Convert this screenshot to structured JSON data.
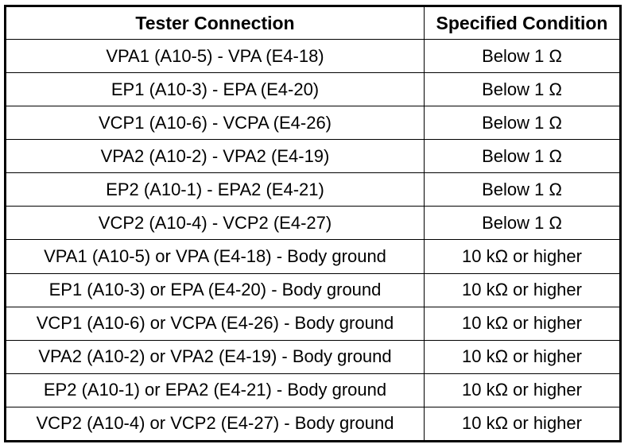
{
  "table": {
    "headers": [
      "Tester Connection",
      "Specified Condition"
    ],
    "rows": [
      [
        "VPA1 (A10-5) - VPA (E4-18)",
        "Below 1 Ω"
      ],
      [
        "EP1 (A10-3) - EPA (E4-20)",
        "Below 1 Ω"
      ],
      [
        "VCP1 (A10-6) - VCPA (E4-26)",
        "Below 1 Ω"
      ],
      [
        "VPA2 (A10-2) - VPA2 (E4-19)",
        "Below 1 Ω"
      ],
      [
        "EP2 (A10-1) - EPA2 (E4-21)",
        "Below 1 Ω"
      ],
      [
        "VCP2 (A10-4) - VCP2 (E4-27)",
        "Below 1 Ω"
      ],
      [
        "VPA1 (A10-5) or VPA (E4-18) - Body ground",
        "10 kΩ or higher"
      ],
      [
        "EP1 (A10-3) or EPA (E4-20) - Body ground",
        "10 kΩ or higher"
      ],
      [
        "VCP1 (A10-6) or VCPA (E4-26) - Body ground",
        "10 kΩ or higher"
      ],
      [
        "VPA2 (A10-2) or VPA2 (E4-19) - Body ground",
        "10 kΩ or higher"
      ],
      [
        "EP2 (A10-1) or EPA2 (E4-21) - Body ground",
        "10 kΩ or higher"
      ],
      [
        "VCP2 (A10-4) or VCP2 (E4-27) - Body ground",
        "10 kΩ or higher"
      ]
    ]
  }
}
